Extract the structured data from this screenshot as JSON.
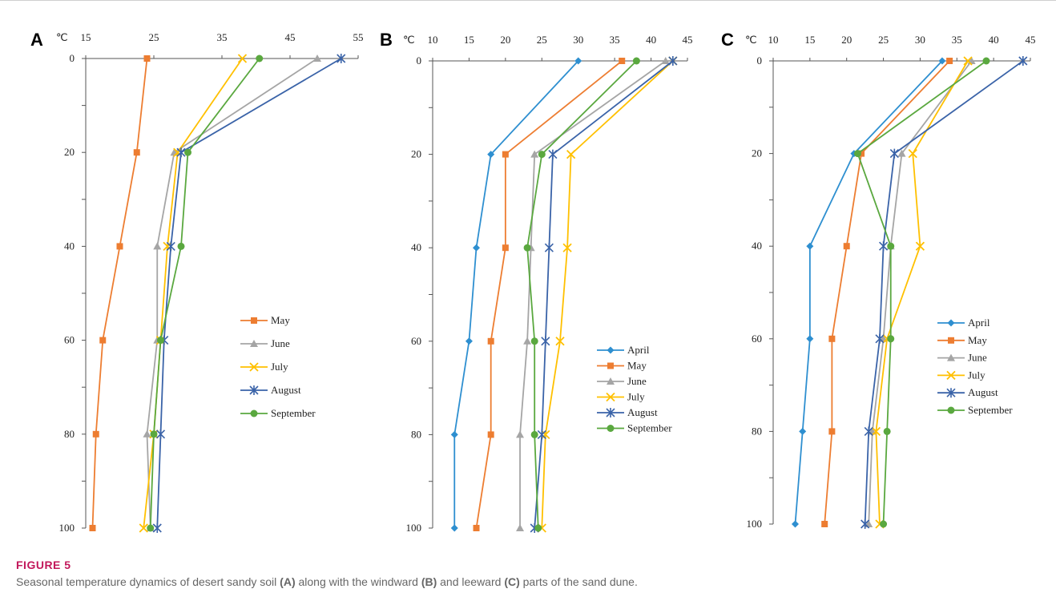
{
  "figure": {
    "label": "FIGURE 5",
    "caption_parts": [
      {
        "text": "Seasonal temperature dynamics of desert sandy soil ",
        "bold": false
      },
      {
        "text": "(A)",
        "bold": true
      },
      {
        "text": " along with the windward ",
        "bold": false
      },
      {
        "text": "(B)",
        "bold": true
      },
      {
        "text": " and leeward ",
        "bold": false
      },
      {
        "text": "(C)",
        "bold": true
      },
      {
        "text": " parts of the sand dune.",
        "bold": false
      }
    ]
  },
  "colors": {
    "April": "#2e8fd0",
    "May": "#ed7d31",
    "June": "#a5a5a5",
    "July": "#ffc000",
    "August": "#3a63a8",
    "September": "#5aa83f"
  },
  "markers": {
    "April": "diamond",
    "May": "square",
    "June": "triangle",
    "July": "x",
    "August": "star",
    "September": "circle"
  },
  "chart_data": [
    {
      "panel": "A",
      "type": "line",
      "orientation": "depth-vertical",
      "x_unit": "℃",
      "x_ticks": [
        15,
        25,
        35,
        45,
        55
      ],
      "xlim": [
        15,
        55
      ],
      "y_ticks": [
        0,
        20,
        40,
        60,
        80,
        100
      ],
      "ylim": [
        0,
        100
      ],
      "y_inverted": true,
      "legend_position": "center-right",
      "depths": [
        0,
        20,
        40,
        60,
        80,
        100
      ],
      "series": [
        {
          "name": "May",
          "values": [
            24,
            22.5,
            20,
            17.5,
            16.5,
            16
          ]
        },
        {
          "name": "June",
          "values": [
            49,
            28,
            25.5,
            25.5,
            24,
            24.5
          ]
        },
        {
          "name": "July",
          "values": [
            38,
            28.5,
            27,
            26,
            25,
            23.5
          ]
        },
        {
          "name": "August",
          "values": [
            52.5,
            29,
            27.5,
            26.5,
            26,
            25.5
          ]
        },
        {
          "name": "September",
          "values": [
            40.5,
            30,
            29,
            26,
            25,
            24.5
          ]
        }
      ]
    },
    {
      "panel": "B",
      "type": "line",
      "orientation": "depth-vertical",
      "x_unit": "℃",
      "x_ticks": [
        10,
        15,
        20,
        25,
        30,
        35,
        40,
        45
      ],
      "xlim": [
        10,
        45
      ],
      "y_ticks": [
        0,
        20,
        40,
        60,
        80,
        100
      ],
      "ylim": [
        0,
        100
      ],
      "y_inverted": true,
      "legend_position": "bottom-right",
      "depths": [
        0,
        20,
        40,
        60,
        80,
        100
      ],
      "series": [
        {
          "name": "April",
          "values": [
            30,
            18,
            16,
            15,
            13,
            13
          ]
        },
        {
          "name": "May",
          "values": [
            36,
            20,
            20,
            18,
            18,
            16
          ]
        },
        {
          "name": "June",
          "values": [
            42,
            24,
            23.5,
            23,
            22,
            22
          ]
        },
        {
          "name": "July",
          "values": [
            43,
            29,
            28.5,
            27.5,
            25.5,
            25
          ]
        },
        {
          "name": "August",
          "values": [
            43,
            26.5,
            26,
            25.5,
            25,
            24
          ]
        },
        {
          "name": "September",
          "values": [
            38,
            25,
            23,
            24,
            24,
            24.5
          ]
        }
      ]
    },
    {
      "panel": "C",
      "type": "line",
      "orientation": "depth-vertical",
      "x_unit": "℃",
      "x_ticks": [
        10,
        15,
        20,
        25,
        30,
        35,
        40,
        45
      ],
      "xlim": [
        10,
        45
      ],
      "y_ticks": [
        0,
        20,
        40,
        60,
        80,
        100
      ],
      "ylim": [
        0,
        100
      ],
      "y_inverted": true,
      "legend_position": "center-right",
      "depths": [
        0,
        20,
        40,
        60,
        80,
        100
      ],
      "series": [
        {
          "name": "April",
          "values": [
            33,
            21,
            15,
            15,
            14,
            13
          ]
        },
        {
          "name": "May",
          "values": [
            34,
            22,
            20,
            18,
            18,
            17
          ]
        },
        {
          "name": "June",
          "values": [
            37,
            27.5,
            26,
            25,
            23.5,
            23
          ]
        },
        {
          "name": "July",
          "values": [
            36.5,
            29,
            30,
            25.5,
            24,
            24.5
          ]
        },
        {
          "name": "August",
          "values": [
            44,
            26.5,
            25,
            24.5,
            23,
            22.5
          ]
        },
        {
          "name": "September",
          "values": [
            39,
            21.5,
            26,
            26,
            25.5,
            25
          ]
        }
      ]
    }
  ]
}
